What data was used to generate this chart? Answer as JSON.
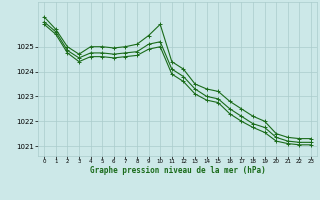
{
  "title": "Graphe pression niveau de la mer (hPa)",
  "background_color": "#cce8e8",
  "grid_color": "#aacccc",
  "line_color": "#1a6b1a",
  "xlim": [
    -0.5,
    23.5
  ],
  "ylim": [
    1020.6,
    1026.8
  ],
  "yticks": [
    1021,
    1022,
    1023,
    1024,
    1025
  ],
  "xticks": [
    0,
    1,
    2,
    3,
    4,
    5,
    6,
    7,
    8,
    9,
    10,
    11,
    12,
    13,
    14,
    15,
    16,
    17,
    18,
    19,
    20,
    21,
    22,
    23
  ],
  "series1": [
    1026.2,
    1025.7,
    1025.0,
    1024.7,
    1025.0,
    1025.0,
    1024.95,
    1025.0,
    1025.1,
    1025.45,
    1025.9,
    1024.4,
    1024.1,
    1023.5,
    1023.3,
    1023.2,
    1022.8,
    1022.5,
    1022.2,
    1022.0,
    1021.5,
    1021.35,
    1021.3,
    1021.3
  ],
  "series2": [
    1026.0,
    1025.6,
    1024.85,
    1024.55,
    1024.75,
    1024.75,
    1024.7,
    1024.75,
    1024.8,
    1025.1,
    1025.2,
    1024.1,
    1023.8,
    1023.3,
    1023.0,
    1022.9,
    1022.5,
    1022.2,
    1021.9,
    1021.75,
    1021.35,
    1021.2,
    1021.15,
    1021.15
  ],
  "series3": [
    1025.9,
    1025.5,
    1024.75,
    1024.4,
    1024.6,
    1024.6,
    1024.55,
    1024.6,
    1024.65,
    1024.9,
    1025.0,
    1023.9,
    1023.6,
    1023.1,
    1022.85,
    1022.75,
    1022.3,
    1022.0,
    1021.75,
    1021.55,
    1021.2,
    1021.1,
    1021.05,
    1021.05
  ]
}
